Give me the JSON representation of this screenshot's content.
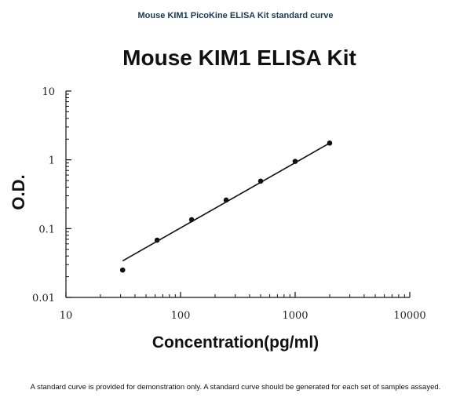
{
  "header": {
    "caption": "Mouse KIM1 PicoKine ELISA Kit standard curve"
  },
  "footer": {
    "note": "A standard curve is provided for demonstration only. A standard curve should be generated for each set of samples assayed."
  },
  "chart_data": {
    "type": "scatter",
    "title": "Mouse KIM1 ELISA Kit",
    "xlabel": "Concentration(pg/ml)",
    "ylabel": "O.D.",
    "x_scale": "log",
    "y_scale": "log",
    "xlim": [
      10,
      10000
    ],
    "ylim": [
      0.01,
      10
    ],
    "x_tick_labels": [
      "10",
      "100",
      "1000",
      "10000"
    ],
    "y_tick_labels": [
      "10",
      "1",
      "0.1",
      "0.01"
    ],
    "grid": false,
    "points": [
      {
        "x": 31.25,
        "y": 0.025
      },
      {
        "x": 62.5,
        "y": 0.068
      },
      {
        "x": 125,
        "y": 0.135
      },
      {
        "x": 250,
        "y": 0.26
      },
      {
        "x": 500,
        "y": 0.49
      },
      {
        "x": 1000,
        "y": 0.95
      },
      {
        "x": 2000,
        "y": 1.75
      }
    ],
    "fit_line": {
      "x": [
        31.25,
        2000
      ],
      "y": [
        0.034,
        1.75
      ]
    },
    "colors": {
      "points": "#111111",
      "line": "#111111",
      "axes": "#111111"
    }
  }
}
